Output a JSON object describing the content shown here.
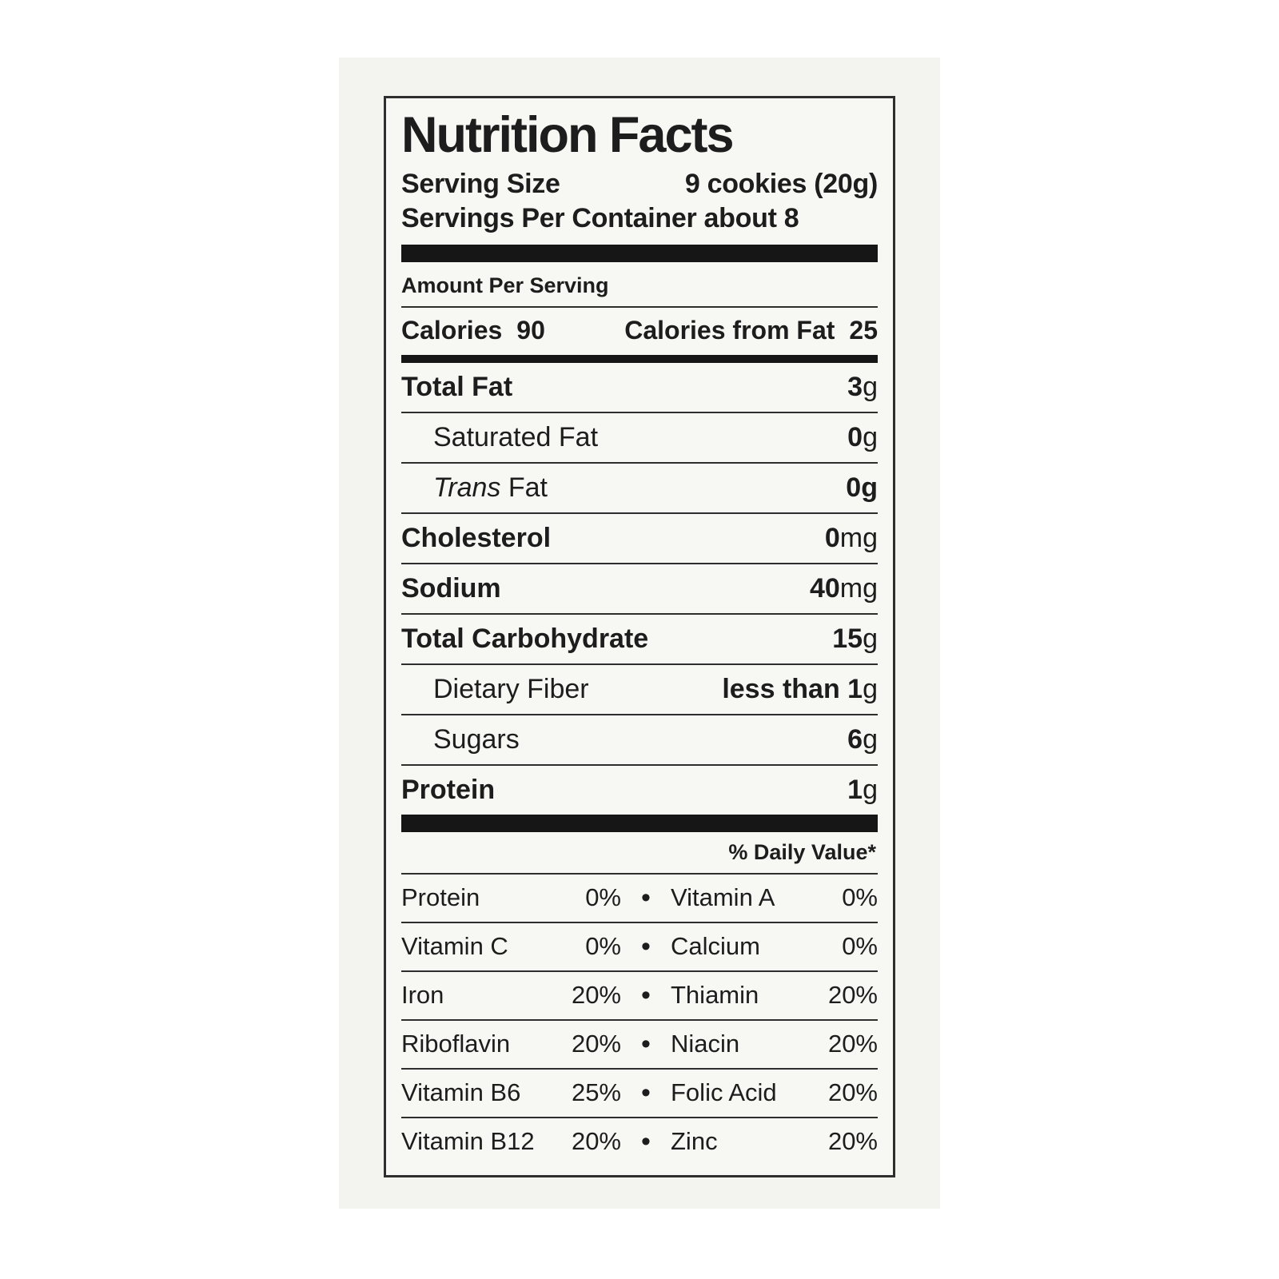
{
  "colors": {
    "page_background": "#ffffff",
    "photo_background": "#f3f3f0",
    "label_background": "#f7f7f4",
    "text": "#1d1d1d",
    "bar": "#161616"
  },
  "label": {
    "title": "Nutrition Facts",
    "serving_size_label": "Serving Size",
    "serving_size_value": "9 cookies (20g)",
    "servings_per_container": "Servings Per Container about 8",
    "amount_per_serving": "Amount Per Serving",
    "calories_label": "Calories",
    "calories_value": "90",
    "calories_from_fat_label": "Calories from Fat",
    "calories_from_fat_value": "25",
    "rows": [
      {
        "name": "Total Fat",
        "value": "3",
        "unit": "g"
      },
      {
        "name": "Saturated Fat",
        "value": "0",
        "unit": "g"
      },
      {
        "name_italic": "Trans ",
        "name_rest": "Fat",
        "value": "0",
        "unit": "g"
      },
      {
        "name": "Cholesterol",
        "value": "0",
        "unit": "mg"
      },
      {
        "name": "Sodium",
        "value": "40",
        "unit": "mg"
      },
      {
        "name": "Total Carbohydrate",
        "value": "15",
        "unit": "g"
      },
      {
        "name": "Dietary Fiber",
        "value": "less than 1",
        "unit": "g"
      },
      {
        "name": "Sugars",
        "value": "6",
        "unit": "g"
      },
      {
        "name": "Protein",
        "value": "1",
        "unit": "g"
      }
    ],
    "daily_value_heading": "% Daily Value*",
    "bullet": "•",
    "vitamins": [
      {
        "left_name": "Protein",
        "left_value": "0%",
        "right_name": "Vitamin A",
        "right_value": "0%"
      },
      {
        "left_name": "Vitamin C",
        "left_value": "0%",
        "right_name": "Calcium",
        "right_value": "0%"
      },
      {
        "left_name": "Iron",
        "left_value": "20%",
        "right_name": "Thiamin",
        "right_value": "20%"
      },
      {
        "left_name": "Riboflavin",
        "left_value": "20%",
        "right_name": "Niacin",
        "right_value": "20%"
      },
      {
        "left_name": "Vitamin B6",
        "left_value": "25%",
        "right_name": "Folic Acid",
        "right_value": "20%"
      },
      {
        "left_name": "Vitamin B12",
        "left_value": "20%",
        "right_name": "Zinc",
        "right_value": "20%"
      }
    ]
  }
}
